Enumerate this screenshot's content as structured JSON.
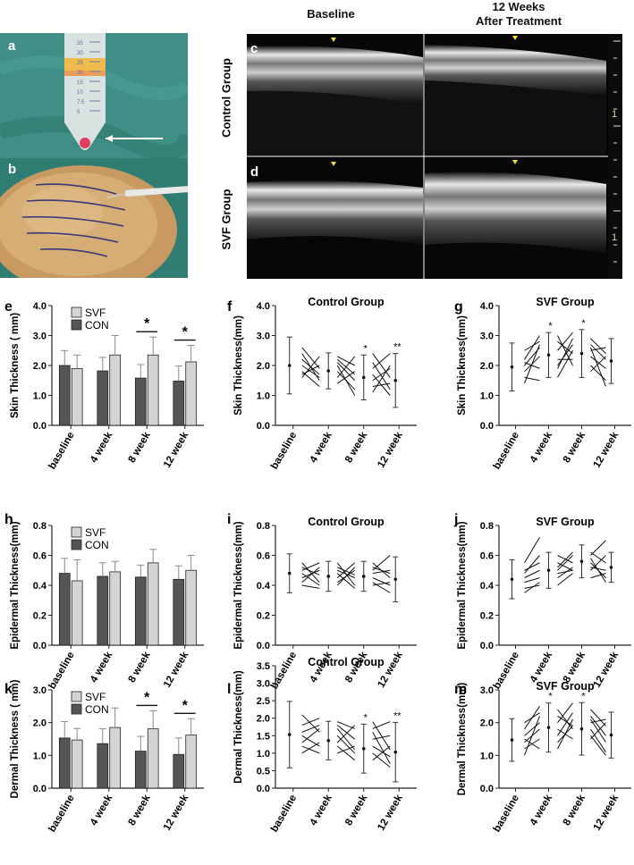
{
  "panel_letters": {
    "a": "a",
    "b": "b",
    "c": "c",
    "d": "d",
    "e": "e",
    "f": "f",
    "g": "g",
    "h": "h",
    "i": "i",
    "j": "j",
    "k": "k",
    "l": "l",
    "m": "m"
  },
  "ultrasound": {
    "col_baseline": "Baseline",
    "col_12w_line1": "12 Weeks",
    "col_12w_line2": "After  Treatment",
    "row_control": "Control Group",
    "row_svf": "SVF Group",
    "scale_mark": "1"
  },
  "tube_marks": [
    "35",
    "30",
    "25",
    "20",
    "15",
    "10",
    "7.5",
    "5"
  ],
  "colors": {
    "svf": "#d4d4d4",
    "con": "#555555",
    "sky": "#2f7f78",
    "drape": "#3f8f86"
  },
  "chart_data": [
    {
      "id": "e",
      "type": "bar",
      "title": "",
      "ylabel": "Skin Thickness ( mm)",
      "categories": [
        "baseline",
        "4 week",
        "8 week",
        "12 week"
      ],
      "ylim": [
        0,
        4
      ],
      "yticks": [
        "0.0",
        "1.0",
        "2.0",
        "3.0",
        "4.0"
      ],
      "legend": [
        "SVF",
        "CON"
      ],
      "series": [
        {
          "name": "CON",
          "values": [
            2.0,
            1.82,
            1.58,
            1.48
          ],
          "err": [
            0.5,
            0.45,
            0.45,
            0.5
          ]
        },
        {
          "name": "SVF",
          "values": [
            1.9,
            2.35,
            2.35,
            2.12
          ],
          "err": [
            0.45,
            0.65,
            0.6,
            0.55
          ]
        }
      ],
      "sig": [
        "",
        "",
        "*",
        "*"
      ]
    },
    {
      "id": "f",
      "type": "line",
      "title": "Control Group",
      "ylabel": "Skin Thickness(mm)",
      "categories": [
        "baseline",
        "4 week",
        "8 week",
        "12 week"
      ],
      "ylim": [
        0,
        4
      ],
      "yticks": [
        "0.0",
        "1.0",
        "2.0",
        "3.0",
        "4.0"
      ],
      "means": [
        2.0,
        1.82,
        1.6,
        1.5
      ],
      "err": [
        0.95,
        0.6,
        0.75,
        0.9
      ],
      "lines": [
        [
          [
            2.6,
            1.9
          ],
          [
            2.2,
            1.7
          ],
          [
            2.0,
            1.6
          ],
          [
            1.8,
            1.3
          ],
          [
            1.7,
            2.0
          ],
          [
            1.6,
            2.3
          ],
          [
            2.4,
            1.5
          ]
        ],
        [
          [
            2.3,
            2.0
          ],
          [
            2.1,
            1.5
          ],
          [
            1.8,
            1.2
          ],
          [
            1.6,
            2.3
          ],
          [
            2.0,
            1.0
          ],
          [
            1.4,
            1.8
          ],
          [
            2.2,
            1.7
          ]
        ],
        [
          [
            2.1,
            1.2
          ],
          [
            1.9,
            2.4
          ],
          [
            1.7,
            1.0
          ],
          [
            1.5,
            1.9
          ],
          [
            1.3,
            1.4
          ],
          [
            2.4,
            1.6
          ],
          [
            1.1,
            2.0
          ]
        ]
      ],
      "sig": [
        "",
        "",
        "*",
        "**"
      ]
    },
    {
      "id": "g",
      "type": "line",
      "title": "SVF Group",
      "ylabel": "Skin Thickness(mm)",
      "categories": [
        "baseline",
        "4 week",
        "8 week",
        "12 week"
      ],
      "ylim": [
        0,
        4
      ],
      "yticks": [
        "0.0",
        "1.0",
        "2.0",
        "3.0",
        "4.0"
      ],
      "means": [
        1.95,
        2.35,
        2.4,
        2.15
      ],
      "err": [
        0.8,
        0.75,
        0.8,
        0.75
      ],
      "lines": [
        [
          [
            2.5,
            2.8
          ],
          [
            2.2,
            3.0
          ],
          [
            2.0,
            2.6
          ],
          [
            1.8,
            2.3
          ],
          [
            1.6,
            1.5
          ],
          [
            2.1,
            1.9
          ],
          [
            1.4,
            2.7
          ]
        ],
        [
          [
            2.8,
            2.4
          ],
          [
            2.5,
            3.1
          ],
          [
            2.2,
            2.2
          ],
          [
            2.0,
            2.7
          ],
          [
            1.6,
            2.5
          ],
          [
            3.0,
            2.0
          ],
          [
            1.9,
            2.9
          ]
        ],
        [
          [
            2.7,
            2.2
          ],
          [
            2.5,
            2.6
          ],
          [
            2.3,
            1.9
          ],
          [
            2.9,
            2.4
          ],
          [
            2.0,
            1.5
          ],
          [
            2.6,
            1.3
          ],
          [
            1.8,
            2.3
          ]
        ]
      ],
      "sig": [
        "",
        "*",
        "*",
        ""
      ]
    },
    {
      "id": "h",
      "type": "bar",
      "title": "",
      "ylabel": "Epidermal Thickness(mm)",
      "categories": [
        "baseline",
        "4 week",
        "8 week",
        "12 week"
      ],
      "ylim": [
        0,
        0.8
      ],
      "yticks": [
        "0.0",
        "0.2",
        "0.4",
        "0.6",
        "0.8"
      ],
      "legend": [
        "SVF",
        "CON"
      ],
      "series": [
        {
          "name": "CON",
          "values": [
            0.48,
            0.46,
            0.455,
            0.44
          ],
          "err": [
            0.1,
            0.09,
            0.08,
            0.09
          ]
        },
        {
          "name": "SVF",
          "values": [
            0.43,
            0.49,
            0.55,
            0.5
          ],
          "err": [
            0.14,
            0.07,
            0.09,
            0.1
          ]
        }
      ],
      "sig": [
        "",
        "",
        "",
        ""
      ]
    },
    {
      "id": "i",
      "type": "line",
      "title": "Control Group",
      "ylabel": "Epidermal Thickness(mm)",
      "categories": [
        "baseline",
        "4 week",
        "8 week",
        "12 week"
      ],
      "ylim": [
        0,
        0.8
      ],
      "yticks": [
        "0.0",
        "0.2",
        "0.4",
        "0.6",
        "0.8"
      ],
      "means": [
        0.48,
        0.46,
        0.46,
        0.44
      ],
      "err": [
        0.13,
        0.1,
        0.1,
        0.15
      ],
      "lines": [
        [
          [
            0.55,
            0.42
          ],
          [
            0.5,
            0.55
          ],
          [
            0.48,
            0.4
          ],
          [
            0.45,
            0.5
          ],
          [
            0.42,
            0.52
          ],
          [
            0.52,
            0.47
          ],
          [
            0.4,
            0.38
          ]
        ],
        [
          [
            0.5,
            0.45
          ],
          [
            0.45,
            0.55
          ],
          [
            0.55,
            0.4
          ],
          [
            0.42,
            0.5
          ],
          [
            0.48,
            0.38
          ],
          [
            0.4,
            0.52
          ],
          [
            0.52,
            0.47
          ]
        ],
        [
          [
            0.5,
            0.6
          ],
          [
            0.45,
            0.4
          ],
          [
            0.48,
            0.5
          ],
          [
            0.42,
            0.35
          ],
          [
            0.55,
            0.45
          ],
          [
            0.4,
            0.42
          ],
          [
            0.52,
            0.48
          ]
        ]
      ],
      "sig": [
        "",
        "",
        "",
        ""
      ]
    },
    {
      "id": "j",
      "type": "line",
      "title": "SVF Group",
      "ylabel": "Epidermal Thickness(mm)",
      "categories": [
        "baseline",
        "4 week",
        "8 week",
        "12 week"
      ],
      "ylim": [
        0,
        0.8
      ],
      "yticks": [
        "0.0",
        "0.2",
        "0.4",
        "0.6",
        "0.8"
      ],
      "means": [
        0.44,
        0.5,
        0.56,
        0.52
      ],
      "err": [
        0.13,
        0.12,
        0.11,
        0.1
      ],
      "lines": [
        [
          [
            0.55,
            0.72
          ],
          [
            0.48,
            0.6
          ],
          [
            0.42,
            0.45
          ],
          [
            0.38,
            0.4
          ],
          [
            0.45,
            0.5
          ],
          [
            0.35,
            0.42
          ],
          [
            0.5,
            0.55
          ]
        ],
        [
          [
            0.55,
            0.5
          ],
          [
            0.5,
            0.6
          ],
          [
            0.45,
            0.52
          ],
          [
            0.6,
            0.55
          ],
          [
            0.4,
            0.48
          ],
          [
            0.52,
            0.62
          ],
          [
            0.48,
            0.5
          ]
        ],
        [
          [
            0.6,
            0.7
          ],
          [
            0.55,
            0.45
          ],
          [
            0.52,
            0.5
          ],
          [
            0.5,
            0.6
          ],
          [
            0.58,
            0.42
          ],
          [
            0.45,
            0.48
          ],
          [
            0.62,
            0.55
          ]
        ]
      ],
      "sig": [
        "",
        "",
        "",
        ""
      ]
    },
    {
      "id": "k",
      "type": "bar",
      "title": "",
      "ylabel": "Dermal Thickness ( mm)",
      "categories": [
        "baseline",
        "4 week",
        "8 week",
        "12 week"
      ],
      "ylim": [
        0,
        3
      ],
      "yticks": [
        "0.0",
        "1.0",
        "2.0",
        "3.0"
      ],
      "legend": [
        "SVF",
        "CON"
      ],
      "series": [
        {
          "name": "CON",
          "values": [
            1.53,
            1.36,
            1.13,
            1.03
          ],
          "err": [
            0.5,
            0.45,
            0.45,
            0.5
          ]
        },
        {
          "name": "SVF",
          "values": [
            1.47,
            1.85,
            1.81,
            1.62
          ],
          "err": [
            0.35,
            0.6,
            0.55,
            0.5
          ]
        }
      ],
      "sig": [
        "",
        "",
        "*",
        "*"
      ]
    },
    {
      "id": "l",
      "type": "line",
      "title": "Control Group",
      "ylabel": "Dermal Thickness(mm)",
      "categories": [
        "baseline",
        "4 week",
        "8 week",
        "12 week"
      ],
      "ylim": [
        0,
        3.5
      ],
      "yticks": [
        "0.0",
        "0.5",
        "1.0",
        "1.5",
        "2.0",
        "2.5",
        "3.0",
        "3.5"
      ],
      "means": [
        1.53,
        1.36,
        1.13,
        1.03
      ],
      "err": [
        0.95,
        0.55,
        0.7,
        0.85
      ],
      "lines": [
        [
          [
            2.1,
            1.6
          ],
          [
            1.8,
            2.0
          ],
          [
            1.5,
            1.2
          ],
          [
            1.2,
            1.0
          ],
          [
            1.0,
            1.3
          ],
          [
            1.6,
            1.8
          ],
          [
            1.3,
            1.7
          ]
        ],
        [
          [
            1.9,
            1.7
          ],
          [
            1.7,
            1.1
          ],
          [
            1.5,
            1.0
          ],
          [
            1.3,
            1.8
          ],
          [
            1.2,
            0.8
          ],
          [
            1.8,
            1.4
          ],
          [
            1.0,
            1.2
          ]
        ],
        [
          [
            1.9,
            1.1
          ],
          [
            1.6,
            0.7
          ],
          [
            1.4,
            1.5
          ],
          [
            1.2,
            0.9
          ],
          [
            1.0,
            0.6
          ],
          [
            1.7,
            1.9
          ],
          [
            0.8,
            1.2
          ]
        ]
      ],
      "sig": [
        "",
        "",
        "*",
        "**"
      ]
    },
    {
      "id": "m",
      "type": "line",
      "title": "SVF Group",
      "ylabel": "Dermal Thickness(mm)",
      "categories": [
        "baseline",
        "4 week",
        "8 week",
        "12 week"
      ],
      "ylim": [
        0,
        3
      ],
      "yticks": [
        "0.0",
        "1.0",
        "2.0",
        "3.0"
      ],
      "means": [
        1.47,
        1.85,
        1.81,
        1.62
      ],
      "err": [
        0.65,
        0.75,
        0.8,
        0.7
      ],
      "lines": [
        [
          [
            2.0,
            2.3
          ],
          [
            1.8,
            2.5
          ],
          [
            1.6,
            2.0
          ],
          [
            1.4,
            1.8
          ],
          [
            1.2,
            1.5
          ],
          [
            1.0,
            2.2
          ],
          [
            1.5,
            1.2
          ]
        ],
        [
          [
            2.2,
            1.9
          ],
          [
            2.0,
            2.6
          ],
          [
            1.8,
            1.5
          ],
          [
            1.6,
            2.3
          ],
          [
            2.4,
            1.8
          ],
          [
            1.4,
            1.9
          ],
          [
            1.2,
            2.1
          ]
        ],
        [
          [
            2.2,
            1.6
          ],
          [
            2.0,
            2.1
          ],
          [
            1.8,
            1.1
          ],
          [
            2.4,
            1.9
          ],
          [
            1.6,
            1.0
          ],
          [
            1.5,
            2.0
          ],
          [
            2.1,
            1.4
          ]
        ]
      ],
      "sig": [
        "",
        "*",
        "*",
        ""
      ]
    }
  ]
}
